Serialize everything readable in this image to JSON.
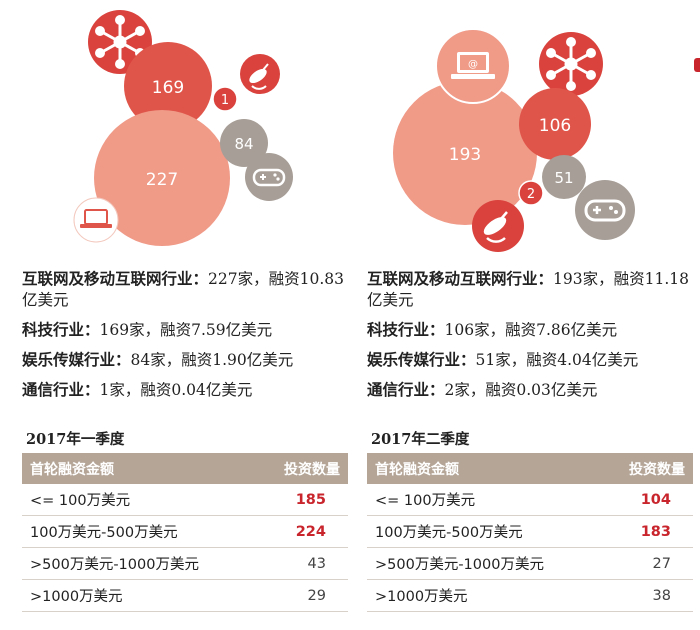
{
  "colors": {
    "dark_red": "#d9423d",
    "salmon": "#f09a88",
    "medium_red": "#e0554a",
    "gray": "#a79e97",
    "header_bg": "#b4a597",
    "highlight": "#c8252d"
  },
  "panels": [
    {
      "bubbles": [
        {
          "category": "科技行业",
          "value": "169",
          "icon": "network-hub-icon"
        },
        {
          "category": "互联网及移动互联网行业",
          "value": "227",
          "icon": "laptop-icon"
        },
        {
          "category": "娱乐传媒行业",
          "value": "84",
          "icon": "gamepad-icon"
        },
        {
          "category": "通信行业",
          "value": "1",
          "icon": "satellite-icon"
        }
      ],
      "stats": [
        {
          "label": "互联网及移动互联网行业：",
          "value": "227家，融资10.83亿美元"
        },
        {
          "label": "科技行业：",
          "value": "169家，融资7.59亿美元"
        },
        {
          "label": "娱乐传媒行业：",
          "value": "84家，融资1.90亿美元"
        },
        {
          "label": "通信行业：",
          "value": "1家，融资0.04亿美元"
        }
      ],
      "quarter_title": "2017年一季度",
      "table": {
        "headers": [
          "首轮融资金额",
          "投资数量"
        ],
        "rows": [
          {
            "range": "<= 100万美元",
            "count": "185"
          },
          {
            "range": "100万美元-500万美元",
            "count": "224"
          },
          {
            "range": ">500万美元-1000万美元",
            "count": "43"
          },
          {
            "range": ">1000万美元",
            "count": "29"
          }
        ]
      }
    },
    {
      "bubbles": [
        {
          "category": "互联网及移动互联网行业",
          "value": "193",
          "icon": "laptop-icon"
        },
        {
          "category": "科技行业",
          "value": "106",
          "icon": "network-hub-icon"
        },
        {
          "category": "娱乐传媒行业",
          "value": "51",
          "icon": "gamepad-icon"
        },
        {
          "category": "通信行业",
          "value": "2",
          "icon": "satellite-icon"
        }
      ],
      "stats": [
        {
          "label": "互联网及移动互联网行业：",
          "value": "193家，融资11.18亿美元"
        },
        {
          "label": "科技行业：",
          "value": "106家，融资7.86亿美元"
        },
        {
          "label": "娱乐传媒行业：",
          "value": "51家，融资4.04亿美元"
        },
        {
          "label": "通信行业：",
          "value": "2家，融资0.03亿美元"
        }
      ],
      "quarter_title": "2017年二季度",
      "table": {
        "headers": [
          "首轮融资金额",
          "投资数量"
        ],
        "rows": [
          {
            "range": "<= 100万美元",
            "count": "104"
          },
          {
            "range": "100万美元-500万美元",
            "count": "183"
          },
          {
            "range": ">500万美元-1000万美元",
            "count": "27"
          },
          {
            "range": ">1000万美元",
            "count": "38"
          }
        ]
      }
    }
  ],
  "chart_data": [
    {
      "type": "bubble",
      "title": "2017年一季度",
      "categories": [
        "互联网及移动互联网行业",
        "科技行业",
        "娱乐传媒行业",
        "通信行业"
      ],
      "values": [
        227,
        169,
        84,
        1
      ],
      "funding_usd_100m": [
        10.83,
        7.59,
        1.9,
        0.04
      ]
    },
    {
      "type": "bubble",
      "title": "2017年二季度",
      "categories": [
        "互联网及移动互联网行业",
        "科技行业",
        "娱乐传媒行业",
        "通信行业"
      ],
      "values": [
        193,
        106,
        51,
        2
      ],
      "funding_usd_100m": [
        11.18,
        7.86,
        4.04,
        0.03
      ]
    }
  ]
}
